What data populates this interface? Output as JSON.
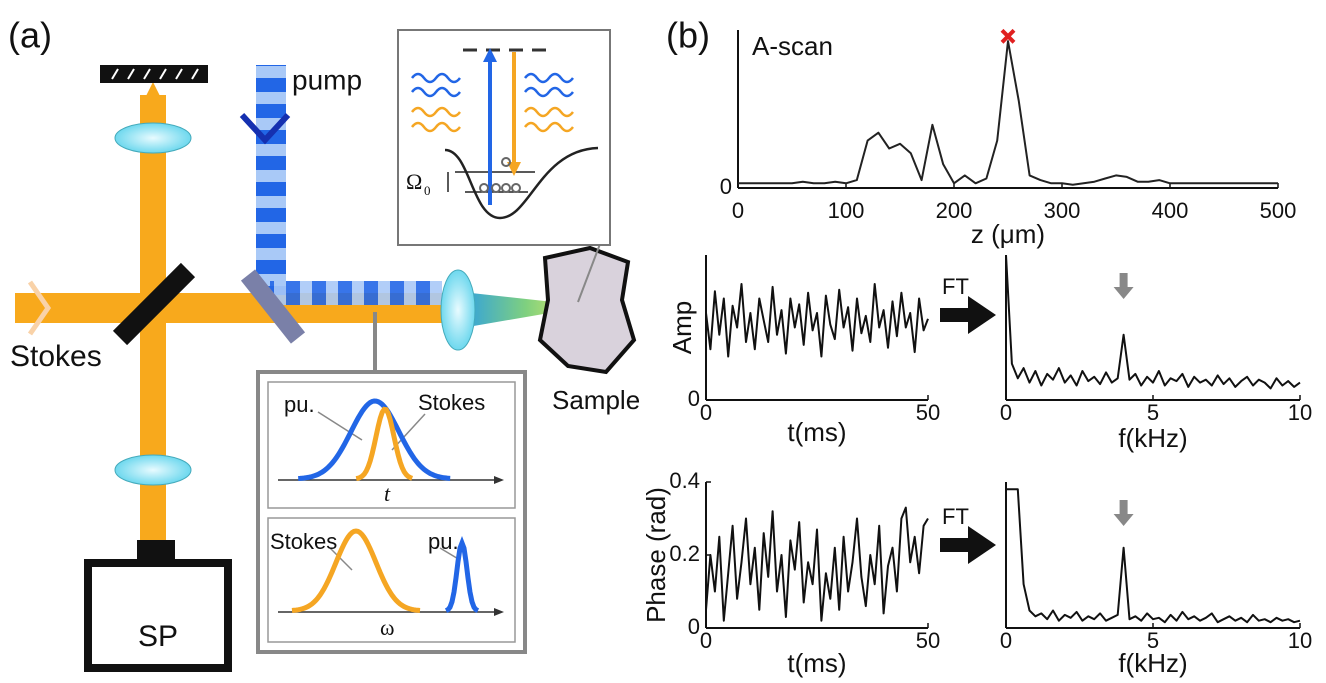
{
  "diagram": {
    "panel_a": "(a)",
    "panel_b": "(b)",
    "pump": "pump",
    "stokes": "Stokes",
    "sample": "Sample",
    "sp": "SP",
    "omega": "Ω",
    "omega_sub": "0",
    "inset_time": {
      "pump": "pu.",
      "stokes": "Stokes",
      "axis": "t"
    },
    "inset_freq": {
      "stokes": "Stokes",
      "pump": "pu.",
      "axis": "ω"
    },
    "ft": [
      "FT",
      "FT"
    ]
  },
  "chart_data": [
    {
      "type": "line",
      "title": "A-scan",
      "xlabel": "z (μm)",
      "color": "#222222",
      "x": [
        0,
        10,
        20,
        30,
        40,
        50,
        60,
        70,
        80,
        90,
        100,
        110,
        120,
        130,
        140,
        150,
        160,
        170,
        180,
        190,
        200,
        210,
        220,
        230,
        240,
        250,
        260,
        270,
        280,
        290,
        300,
        310,
        320,
        330,
        340,
        350,
        360,
        370,
        380,
        390,
        400,
        410,
        420,
        430,
        440,
        450,
        460,
        470,
        480,
        490,
        500
      ],
      "values": [
        0.03,
        0.03,
        0.03,
        0.03,
        0.03,
        0.03,
        0.04,
        0.03,
        0.03,
        0.04,
        0.03,
        0.05,
        0.3,
        0.35,
        0.25,
        0.28,
        0.22,
        0.05,
        0.4,
        0.15,
        0.03,
        0.08,
        0.03,
        0.06,
        0.3,
        0.93,
        0.55,
        0.08,
        0.05,
        0.03,
        0.03,
        0.02,
        0.03,
        0.04,
        0.06,
        0.08,
        0.07,
        0.04,
        0.04,
        0.05,
        0.03,
        0.03,
        0.03,
        0.03,
        0.03,
        0.03,
        0.03,
        0.03,
        0.03,
        0.03,
        0.03
      ],
      "xlim": [
        0,
        500
      ],
      "xticks": [
        0,
        100,
        200,
        300,
        400,
        500
      ],
      "ylim": [
        0,
        1
      ],
      "yticks": [
        0
      ],
      "peak_marker": {
        "x": 250,
        "y": 0.96,
        "color": "#e02020"
      }
    },
    {
      "type": "line",
      "xlabel": "t(ms)",
      "ylabel": "Amp",
      "color": "#111111",
      "x": [
        0,
        1,
        2,
        3,
        4,
        5,
        6,
        7,
        8,
        9,
        10,
        11,
        12,
        13,
        14,
        15,
        16,
        17,
        18,
        19,
        20,
        21,
        22,
        23,
        24,
        25,
        26,
        27,
        28,
        29,
        30,
        31,
        32,
        33,
        34,
        35,
        36,
        37,
        38,
        39,
        40,
        41,
        42,
        43,
        44,
        45,
        46,
        47,
        48,
        49,
        50
      ],
      "values": [
        0.6,
        0.35,
        0.75,
        0.45,
        0.7,
        0.3,
        0.65,
        0.5,
        0.8,
        0.4,
        0.6,
        0.35,
        0.7,
        0.55,
        0.4,
        0.78,
        0.45,
        0.62,
        0.32,
        0.7,
        0.5,
        0.66,
        0.38,
        0.74,
        0.48,
        0.6,
        0.3,
        0.72,
        0.52,
        0.42,
        0.76,
        0.5,
        0.64,
        0.34,
        0.7,
        0.46,
        0.58,
        0.4,
        0.8,
        0.5,
        0.62,
        0.36,
        0.68,
        0.44,
        0.74,
        0.5,
        0.6,
        0.33,
        0.7,
        0.48,
        0.56
      ],
      "xlim": [
        0,
        50
      ],
      "xticks": [
        0,
        50
      ],
      "ylim": [
        0,
        1
      ],
      "yticks": [
        0
      ]
    },
    {
      "type": "line",
      "xlabel": "f(kHz)",
      "color": "#111111",
      "x": [
        0,
        0.2,
        0.4,
        0.6,
        0.8,
        1,
        1.2,
        1.4,
        1.6,
        1.8,
        2,
        2.2,
        2.4,
        2.6,
        2.8,
        3,
        3.2,
        3.4,
        3.6,
        3.8,
        4,
        4.2,
        4.4,
        4.6,
        4.8,
        5,
        5.2,
        5.4,
        5.6,
        5.8,
        6,
        6.2,
        6.4,
        6.6,
        6.8,
        7,
        7.2,
        7.4,
        7.6,
        7.8,
        8,
        8.2,
        8.4,
        8.6,
        8.8,
        9,
        9.2,
        9.4,
        9.6,
        9.8,
        10
      ],
      "values": [
        1.0,
        0.25,
        0.15,
        0.22,
        0.12,
        0.2,
        0.1,
        0.18,
        0.14,
        0.22,
        0.12,
        0.17,
        0.1,
        0.2,
        0.13,
        0.16,
        0.11,
        0.19,
        0.12,
        0.15,
        0.45,
        0.14,
        0.18,
        0.1,
        0.16,
        0.12,
        0.2,
        0.1,
        0.15,
        0.13,
        0.18,
        0.09,
        0.16,
        0.12,
        0.14,
        0.1,
        0.17,
        0.11,
        0.15,
        0.09,
        0.13,
        0.16,
        0.1,
        0.14,
        0.12,
        0.08,
        0.15,
        0.1,
        0.13,
        0.09,
        0.12
      ],
      "xlim": [
        0,
        10
      ],
      "xticks": [
        0,
        5,
        10
      ],
      "ylim": [
        0,
        1
      ],
      "annotation_arrow": {
        "x": 4,
        "color": "#888888"
      }
    },
    {
      "type": "line",
      "xlabel": "t(ms)",
      "ylabel": "Phase (rad)",
      "color": "#111111",
      "x": [
        0,
        1,
        2,
        3,
        4,
        5,
        6,
        7,
        8,
        9,
        10,
        11,
        12,
        13,
        14,
        15,
        16,
        17,
        18,
        19,
        20,
        21,
        22,
        23,
        24,
        25,
        26,
        27,
        28,
        29,
        30,
        31,
        32,
        33,
        34,
        35,
        36,
        37,
        38,
        39,
        40,
        41,
        42,
        43,
        44,
        45,
        46,
        47,
        48,
        49,
        50
      ],
      "values": [
        0.05,
        0.2,
        0.1,
        0.25,
        0.02,
        0.15,
        0.28,
        0.08,
        0.18,
        0.3,
        0.12,
        0.22,
        0.05,
        0.26,
        0.14,
        0.32,
        0.1,
        0.2,
        0.03,
        0.24,
        0.16,
        0.29,
        0.07,
        0.18,
        0.12,
        0.27,
        0.02,
        0.15,
        0.08,
        0.22,
        0.05,
        0.25,
        0.1,
        0.18,
        0.3,
        0.14,
        0.06,
        0.2,
        0.12,
        0.28,
        0.04,
        0.17,
        0.22,
        0.1,
        0.3,
        0.33,
        0.18,
        0.25,
        0.15,
        0.28,
        0.3
      ],
      "xlim": [
        0,
        50
      ],
      "xticks": [
        0,
        50
      ],
      "ylim": [
        0,
        0.4
      ],
      "yticks": [
        0,
        0.2,
        0.4
      ]
    },
    {
      "type": "line",
      "xlabel": "f(kHz)",
      "color": "#111111",
      "x": [
        0,
        0.2,
        0.4,
        0.6,
        0.8,
        1,
        1.2,
        1.4,
        1.6,
        1.8,
        2,
        2.2,
        2.4,
        2.6,
        2.8,
        3,
        3.2,
        3.4,
        3.6,
        3.8,
        4,
        4.2,
        4.4,
        4.6,
        4.8,
        5,
        5.2,
        5.4,
        5.6,
        5.8,
        6,
        6.2,
        6.4,
        6.6,
        6.8,
        7,
        7.2,
        7.4,
        7.6,
        7.8,
        8,
        8.2,
        8.4,
        8.6,
        8.8,
        9,
        9.2,
        9.4,
        9.6,
        9.8,
        10
      ],
      "values": [
        0.95,
        0.95,
        0.95,
        0.3,
        0.12,
        0.08,
        0.1,
        0.06,
        0.12,
        0.05,
        0.09,
        0.07,
        0.11,
        0.05,
        0.08,
        0.06,
        0.1,
        0.05,
        0.07,
        0.09,
        0.55,
        0.06,
        0.08,
        0.05,
        0.1,
        0.06,
        0.07,
        0.04,
        0.09,
        0.05,
        0.11,
        0.06,
        0.08,
        0.05,
        0.07,
        0.1,
        0.04,
        0.06,
        0.08,
        0.05,
        0.07,
        0.04,
        0.09,
        0.05,
        0.06,
        0.04,
        0.07,
        0.05,
        0.06,
        0.04,
        0.05
      ],
      "xlim": [
        0,
        10
      ],
      "xticks": [
        0,
        5,
        10
      ],
      "ylim": [
        0,
        1
      ],
      "annotation_arrow": {
        "x": 4,
        "color": "#888888"
      }
    }
  ]
}
